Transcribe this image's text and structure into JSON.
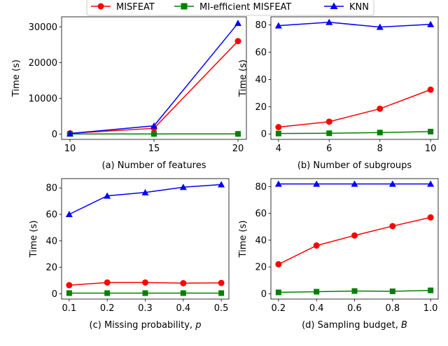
{
  "legend": {
    "entries": [
      {
        "label": "MISFEAT",
        "color": "#ff0000",
        "marker": "circle"
      },
      {
        "label": "MI-efficient MISFEAT",
        "color": "#008000",
        "marker": "square"
      },
      {
        "label": "KNN",
        "color": "#0000ff",
        "marker": "triangle"
      }
    ]
  },
  "chart_data": [
    {
      "type": "line",
      "subtitle": "(a) Number of features",
      "ylabel": "Time (s)",
      "x": [
        10,
        15,
        20
      ],
      "xticks": [
        "10",
        "15",
        "20"
      ],
      "yticks": [
        "0",
        "10000",
        "20000",
        "30000"
      ],
      "xlim": [
        9.5,
        20.5
      ],
      "ylim": [
        -1500,
        32800
      ],
      "series": [
        {
          "name": "MISFEAT",
          "values": [
            200,
            1600,
            26000
          ]
        },
        {
          "name": "MI-efficient MISFEAT",
          "values": [
            20,
            30,
            40
          ]
        },
        {
          "name": "KNN",
          "values": [
            150,
            2300,
            31000
          ]
        }
      ]
    },
    {
      "type": "line",
      "subtitle": "(b) Number of subgroups",
      "ylabel": "Time (s)",
      "x": [
        4,
        6,
        8,
        10
      ],
      "xticks": [
        "4",
        "6",
        "8",
        "10"
      ],
      "yticks": [
        "0",
        "20",
        "40",
        "60",
        "80"
      ],
      "xlim": [
        3.7,
        10.3
      ],
      "ylim": [
        -4,
        86
      ],
      "series": [
        {
          "name": "MISFEAT",
          "values": [
            5,
            9,
            18.5,
            32.5
          ]
        },
        {
          "name": "MI-efficient MISFEAT",
          "values": [
            0.3,
            0.5,
            1,
            1.7
          ]
        },
        {
          "name": "KNN",
          "values": [
            79.5,
            82,
            78.5,
            80.5
          ]
        }
      ]
    },
    {
      "type": "line",
      "subtitle": "(c) Missing probability, p",
      "subtitle_italic": "p",
      "ylabel": "Time (s)",
      "x": [
        0.1,
        0.2,
        0.3,
        0.4,
        0.5
      ],
      "xticks": [
        "0.1",
        "0.2",
        "0.3",
        "0.4",
        "0.5"
      ],
      "yticks": [
        "0",
        "20",
        "40",
        "60",
        "80"
      ],
      "xlim": [
        0.08,
        0.52
      ],
      "ylim": [
        -4,
        87
      ],
      "series": [
        {
          "name": "MISFEAT",
          "values": [
            6.5,
            8.5,
            8.5,
            8,
            8.2
          ]
        },
        {
          "name": "MI-efficient MISFEAT",
          "values": [
            0.5,
            0.5,
            0.5,
            0.5,
            0.5
          ]
        },
        {
          "name": "KNN",
          "values": [
            60,
            74,
            76.5,
            80.5,
            82.5
          ]
        }
      ]
    },
    {
      "type": "line",
      "subtitle": "(d) Sampling budget, B",
      "subtitle_italic": "B",
      "ylabel": "Time (s)",
      "x": [
        0.2,
        0.4,
        0.6,
        0.8,
        1.0
      ],
      "xticks": [
        "0.2",
        "0.4",
        "0.6",
        "0.8",
        "1.0"
      ],
      "yticks": [
        "0",
        "20",
        "40",
        "60",
        "80"
      ],
      "xlim": [
        0.16,
        1.04
      ],
      "ylim": [
        -4,
        86
      ],
      "series": [
        {
          "name": "MISFEAT",
          "values": [
            22,
            36,
            43.5,
            50.5,
            57
          ]
        },
        {
          "name": "MI-efficient MISFEAT",
          "values": [
            1,
            1.5,
            2,
            1.8,
            2.5
          ]
        },
        {
          "name": "KNN",
          "values": [
            82,
            82,
            82,
            82,
            82
          ]
        }
      ]
    }
  ]
}
